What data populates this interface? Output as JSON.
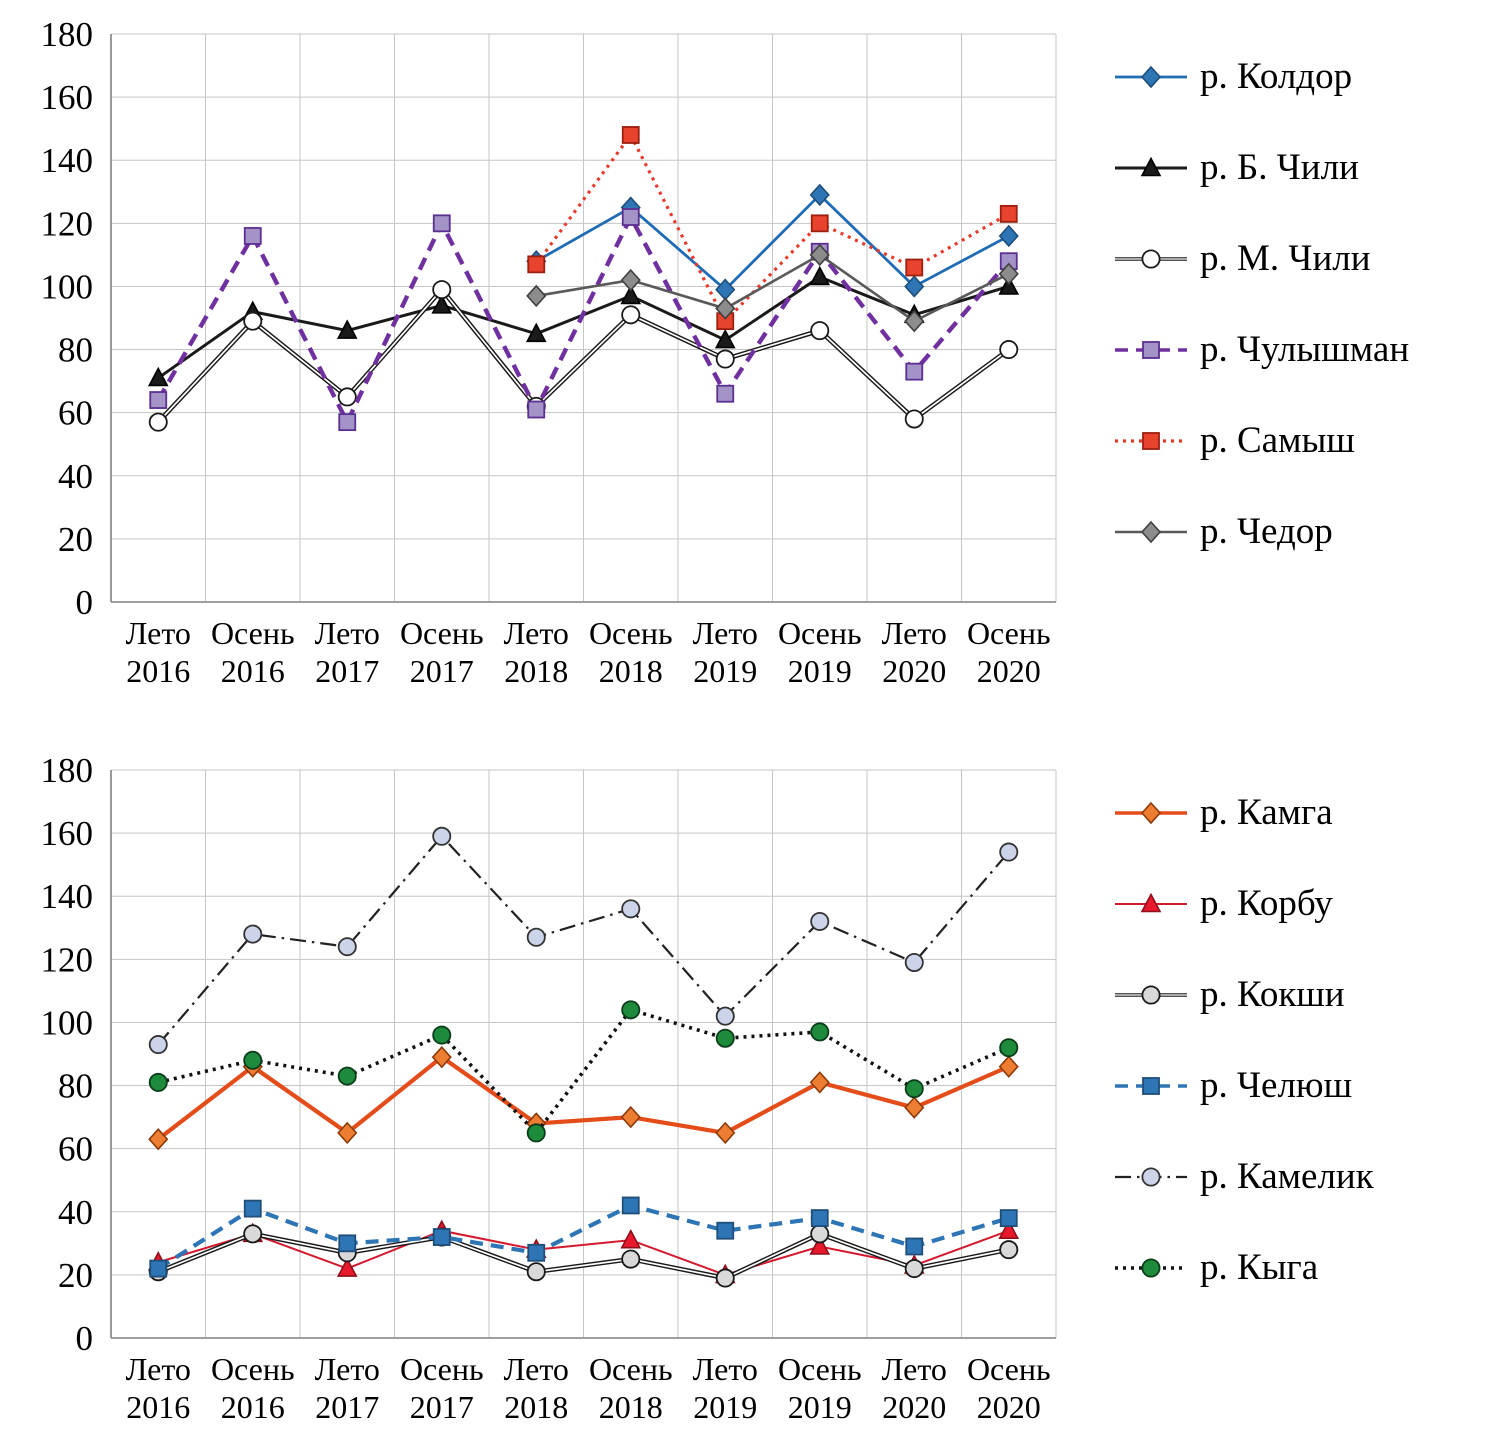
{
  "figure": {
    "background": "#ffffff"
  },
  "chart_data": [
    {
      "type": "line",
      "title": "",
      "xlabel": "",
      "ylabel": "",
      "ylim": [
        0,
        180
      ],
      "ytick_step": 20,
      "grid": true,
      "legend_position": "right",
      "categories_season": [
        "Лето",
        "Осень",
        "Лето",
        "Осень",
        "Лето",
        "Осень",
        "Лето",
        "Осень",
        "Лето",
        "Осень"
      ],
      "categories_year": [
        "2016",
        "2016",
        "2017",
        "2017",
        "2018",
        "2018",
        "2019",
        "2019",
        "2020",
        "2020"
      ],
      "series": [
        {
          "name": "р. Колдор",
          "line_color": "#1f6cb5",
          "line_style": "solid",
          "line_width": 2.8,
          "marker": "diamond",
          "marker_fill": "#2e75b6",
          "marker_stroke": "#1f4e79",
          "values": [
            null,
            null,
            null,
            null,
            108,
            125,
            99,
            129,
            100,
            116
          ]
        },
        {
          "name": "р. Б. Чили",
          "line_color": "#1a1a1a",
          "line_style": "solid",
          "line_width": 3.0,
          "marker": "triangle",
          "marker_fill": "#1a1a1a",
          "marker_stroke": "#000000",
          "values": [
            71,
            92,
            86,
            94,
            85,
            97,
            83,
            103,
            91,
            100
          ]
        },
        {
          "name": "р. М. Чили",
          "line_color": "#1a1a1a",
          "line_style": "double",
          "line_width": 4.6,
          "marker": "circle",
          "marker_fill": "#ffffff",
          "marker_stroke": "#1a1a1a",
          "values": [
            57,
            89,
            65,
            99,
            62,
            91,
            77,
            86,
            58,
            80
          ]
        },
        {
          "name": "р. Чулышман",
          "line_color": "#7030a0",
          "line_style": "dashed",
          "line_width": 4.4,
          "marker": "square",
          "marker_fill": "#a393c7",
          "marker_stroke": "#5b2f91",
          "values": [
            64,
            116,
            57,
            120,
            61,
            122,
            66,
            111,
            73,
            108
          ]
        },
        {
          "name": "р. Самыш",
          "line_color": "#e8392b",
          "line_style": "dotted",
          "line_width": 3.2,
          "marker": "square",
          "marker_fill": "#e8432c",
          "marker_stroke": "#9c1f10",
          "values": [
            null,
            null,
            null,
            null,
            107,
            148,
            89,
            120,
            106,
            123
          ]
        },
        {
          "name": "р. Чедор",
          "line_color": "#595959",
          "line_style": "solid",
          "line_width": 2.6,
          "marker": "diamond",
          "marker_fill": "#8c8c8c",
          "marker_stroke": "#404040",
          "values": [
            null,
            null,
            null,
            null,
            97,
            102,
            93,
            110,
            89,
            104
          ]
        }
      ]
    },
    {
      "type": "line",
      "title": "",
      "xlabel": "",
      "ylabel": "",
      "ylim": [
        0,
        180
      ],
      "ytick_step": 20,
      "grid": true,
      "legend_position": "right",
      "categories_season": [
        "Лето",
        "Осень",
        "Лето",
        "Осень",
        "Лето",
        "Осень",
        "Лето",
        "Осень",
        "Лето",
        "Осень"
      ],
      "categories_year": [
        "2016",
        "2016",
        "2017",
        "2017",
        "2018",
        "2018",
        "2019",
        "2019",
        "2020",
        "2020"
      ],
      "series": [
        {
          "name": "р. Камга",
          "line_color": "#e44d1a",
          "line_style": "solid",
          "line_width": 4.2,
          "marker": "diamond",
          "marker_fill": "#ed7d31",
          "marker_stroke": "#8c3a0a",
          "values": [
            63,
            86,
            65,
            89,
            68,
            70,
            65,
            81,
            73,
            86
          ]
        },
        {
          "name": "р. Корбу",
          "line_color": "#d41a2e",
          "line_style": "solid",
          "line_width": 2.0,
          "marker": "triangle",
          "marker_fill": "#e8192c",
          "marker_stroke": "#8f0f1b",
          "values": [
            24,
            33,
            22,
            34,
            28,
            31,
            20,
            29,
            23,
            34
          ]
        },
        {
          "name": "р. Кокши",
          "line_color": "#1a1a1a",
          "line_style": "double",
          "line_width": 4.6,
          "marker": "circle",
          "marker_fill": "#d9d9d9",
          "marker_stroke": "#1a1a1a",
          "values": [
            21,
            33,
            27,
            32,
            21,
            25,
            19,
            33,
            22,
            28
          ]
        },
        {
          "name": "р. Челюш",
          "line_color": "#2e75b6",
          "line_style": "dashed",
          "line_width": 4.2,
          "marker": "square",
          "marker_fill": "#2e75b6",
          "marker_stroke": "#1f4e79",
          "values": [
            22,
            41,
            30,
            32,
            27,
            42,
            34,
            38,
            29,
            38
          ]
        },
        {
          "name": "р. Камелик",
          "line_color": "#222222",
          "line_style": "dashdot",
          "line_width": 2.2,
          "marker": "circle",
          "marker_fill": "#ccd4ea",
          "marker_stroke": "#333333",
          "values": [
            93,
            128,
            124,
            159,
            127,
            136,
            102,
            132,
            119,
            154
          ]
        },
        {
          "name": "р. Кыга",
          "line_color": "#111111",
          "line_style": "dotted",
          "line_width": 3.6,
          "marker": "circle",
          "marker_fill": "#1e8a3c",
          "marker_stroke": "#0b3d1a",
          "values": [
            81,
            88,
            83,
            96,
            65,
            104,
            95,
            97,
            79,
            92
          ]
        }
      ]
    }
  ]
}
